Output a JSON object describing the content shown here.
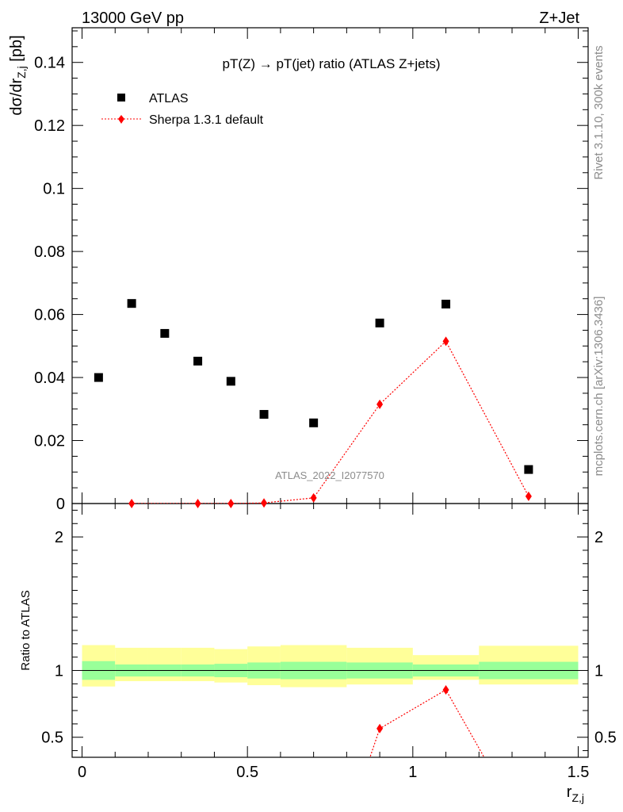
{
  "header": {
    "left": "13000 GeV pp",
    "right": "Z+Jet"
  },
  "side": {
    "rivet": "Rivet 3.1.10,  300k events",
    "mcplots": "mcplots.cern.ch [arXiv:1306.3436]"
  },
  "chart_data": {
    "type": "scatter",
    "title": "pT(Z) → pT(jet) ratio (ATLAS Z+jets)",
    "watermark": "ATLAS_2022_I2077570",
    "ylabel_main": "dσ/dr",
    "ylabel_main_sub": "Z,j",
    "ylabel_main_unit": " [pb]",
    "ylabel_ratio": "Ratio to ATLAS",
    "xlabel": "r",
    "xlabel_sub": "Z,j",
    "xlim": [
      -0.03,
      1.53
    ],
    "ylim_main": [
      0,
      0.151
    ],
    "ylim_ratio": [
      0.35,
      2.25
    ],
    "xticks": [
      0,
      0.5,
      1,
      1.5
    ],
    "xtick_labels": [
      "0",
      "0.5",
      "1",
      "1.5"
    ],
    "yticks_main": [
      0,
      0.02,
      0.04,
      0.06,
      0.08,
      0.1,
      0.12,
      0.14
    ],
    "ytick_labels_main": [
      "0",
      "0.02",
      "0.04",
      "0.06",
      "0.08",
      "0.1",
      "0.12",
      "0.14"
    ],
    "yticks_ratio": [
      0.5,
      1,
      2
    ],
    "ytick_labels_ratio": [
      "0.5",
      "1",
      "2"
    ],
    "legend_position": "top-left",
    "series": [
      {
        "name": "ATLAS",
        "color": "#000000",
        "marker": "square",
        "x": [
          0.05,
          0.15,
          0.25,
          0.35,
          0.45,
          0.55,
          0.7,
          0.9,
          1.1,
          1.35
        ],
        "y": [
          0.04,
          0.0635,
          0.054,
          0.0452,
          0.0388,
          0.0283,
          0.0256,
          0.0573,
          0.0633,
          0.0108
        ]
      },
      {
        "name": "Sherpa 1.3.1 default",
        "color": "#ff0000",
        "marker": "diamond",
        "line": "dotted",
        "x": [
          0.15,
          0.35,
          0.45,
          0.55,
          0.7,
          0.9,
          1.1,
          1.35
        ],
        "y": [
          0.0,
          0.0,
          0.0,
          0.0002,
          0.0018,
          0.0315,
          0.0515,
          0.0023
        ]
      }
    ],
    "ratio": {
      "x_edges": [
        0,
        0.1,
        0.2,
        0.3,
        0.4,
        0.5,
        0.6,
        0.8,
        1.0,
        1.2,
        1.5
      ],
      "inner_band_low": [
        0.93,
        0.955,
        0.955,
        0.955,
        0.95,
        0.94,
        0.935,
        0.94,
        0.955,
        0.935
      ],
      "inner_band_high": [
        1.07,
        1.045,
        1.045,
        1.045,
        1.05,
        1.06,
        1.065,
        1.06,
        1.045,
        1.065
      ],
      "outer_band_low": [
        0.88,
        0.92,
        0.92,
        0.92,
        0.91,
        0.89,
        0.875,
        0.895,
        0.93,
        0.895
      ],
      "outer_band_high": [
        1.19,
        1.17,
        1.17,
        1.17,
        1.16,
        1.18,
        1.19,
        1.17,
        1.115,
        1.185
      ],
      "inner_color": "#99ff99",
      "outer_color": "#ffff99",
      "mc_ratio": {
        "name": "Sherpa 1.3.1 default",
        "x": [
          0.85,
          0.9,
          1.1,
          1.25
        ],
        "y": [
          0.2,
          0.565,
          0.855,
          0.2
        ]
      }
    }
  }
}
